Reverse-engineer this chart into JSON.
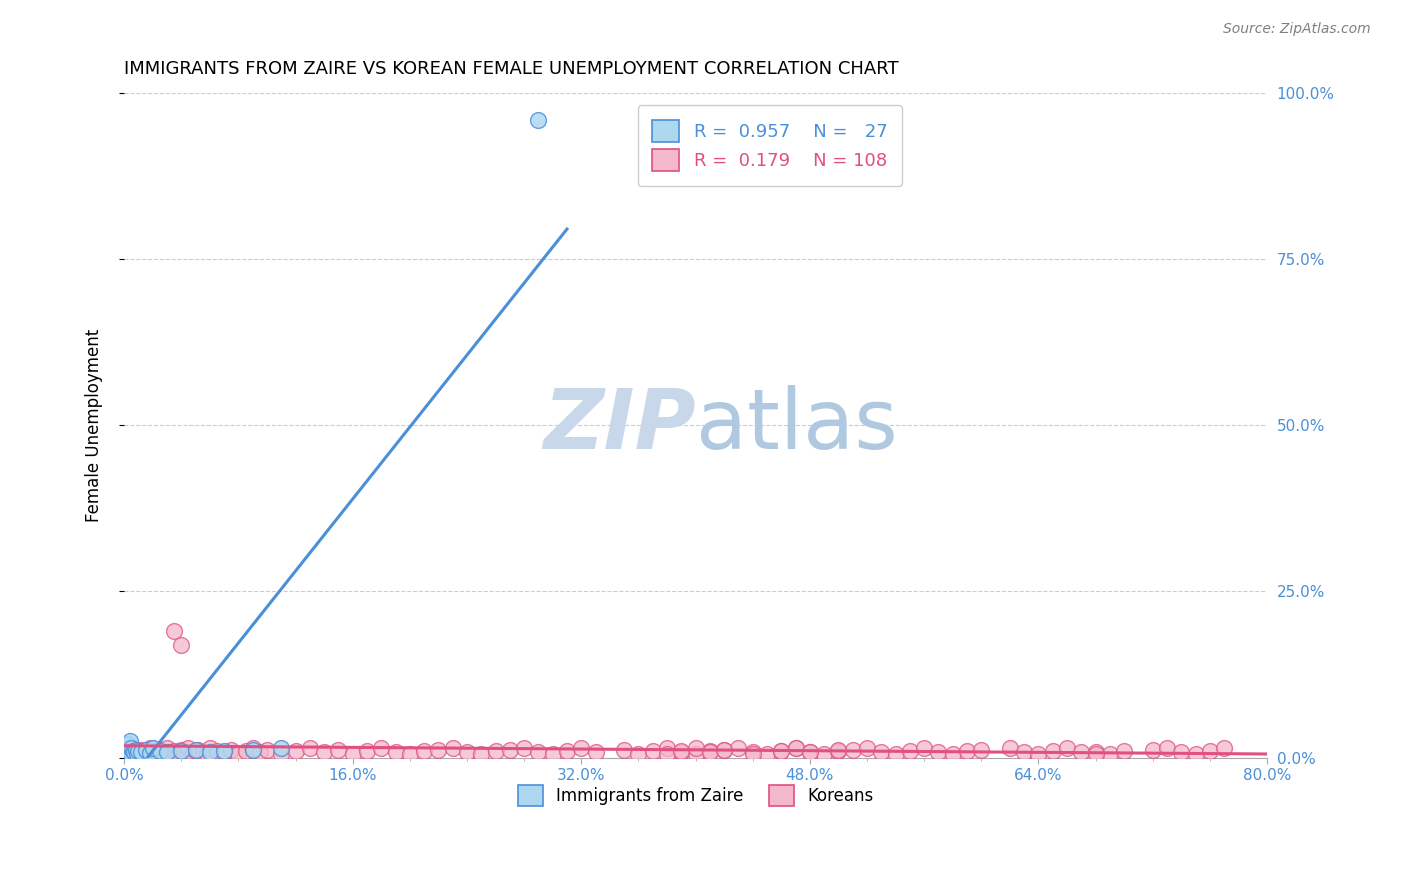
{
  "title": "IMMIGRANTS FROM ZAIRE VS KOREAN FEMALE UNEMPLOYMENT CORRELATION CHART",
  "source": "Source: ZipAtlas.com",
  "ylabel": "Female Unemployment",
  "xlim": [
    0.0,
    0.8
  ],
  "ylim": [
    0.0,
    1.0
  ],
  "legend_R1": "0.957",
  "legend_N1": "27",
  "legend_R2": "0.179",
  "legend_N2": "108",
  "zaire_fill_color": "#aed8f0",
  "zaire_edge_color": "#4a90d9",
  "korean_fill_color": "#f4b8cc",
  "korean_edge_color": "#e05080",
  "zaire_line_color": "#4a90d9",
  "korean_line_color": "#e05080",
  "right_tick_color": "#4a90d9",
  "background_color": "#ffffff",
  "grid_color": "#cccccc",
  "zaire_points_x": [
    0.001,
    0.002,
    0.002,
    0.003,
    0.003,
    0.004,
    0.004,
    0.005,
    0.005,
    0.006,
    0.007,
    0.008,
    0.009,
    0.01,
    0.012,
    0.015,
    0.018,
    0.02,
    0.025,
    0.03,
    0.04,
    0.05,
    0.06,
    0.07,
    0.09,
    0.11,
    0.29
  ],
  "zaire_points_y": [
    0.01,
    0.005,
    0.015,
    0.008,
    0.02,
    0.01,
    0.025,
    0.005,
    0.015,
    0.01,
    0.008,
    0.012,
    0.006,
    0.01,
    0.008,
    0.012,
    0.007,
    0.015,
    0.01,
    0.008,
    0.01,
    0.012,
    0.008,
    0.01,
    0.012,
    0.015,
    0.96
  ],
  "korean_points_x": [
    0.005,
    0.008,
    0.01,
    0.012,
    0.015,
    0.018,
    0.02,
    0.022,
    0.025,
    0.028,
    0.03,
    0.032,
    0.035,
    0.038,
    0.04,
    0.042,
    0.045,
    0.048,
    0.05,
    0.052,
    0.055,
    0.058,
    0.06,
    0.065,
    0.07,
    0.075,
    0.08,
    0.085,
    0.09,
    0.095,
    0.1,
    0.11,
    0.12,
    0.13,
    0.14,
    0.15,
    0.16,
    0.17,
    0.18,
    0.19,
    0.2,
    0.21,
    0.22,
    0.23,
    0.24,
    0.25,
    0.26,
    0.27,
    0.28,
    0.29,
    0.3,
    0.31,
    0.32,
    0.33,
    0.35,
    0.36,
    0.37,
    0.38,
    0.39,
    0.4,
    0.41,
    0.42,
    0.43,
    0.44,
    0.45,
    0.46,
    0.47,
    0.48,
    0.49,
    0.5,
    0.51,
    0.52,
    0.53,
    0.54,
    0.55,
    0.56,
    0.57,
    0.58,
    0.59,
    0.6,
    0.62,
    0.63,
    0.64,
    0.65,
    0.66,
    0.68,
    0.69,
    0.7,
    0.72,
    0.73,
    0.74,
    0.75,
    0.76,
    0.77,
    0.67,
    0.68,
    0.035,
    0.04,
    0.38,
    0.39,
    0.4,
    0.41,
    0.42,
    0.44,
    0.46,
    0.47,
    0.48,
    0.5
  ],
  "korean_points_y": [
    0.005,
    0.01,
    0.008,
    0.012,
    0.006,
    0.015,
    0.008,
    0.01,
    0.012,
    0.005,
    0.015,
    0.008,
    0.01,
    0.006,
    0.012,
    0.008,
    0.015,
    0.005,
    0.01,
    0.012,
    0.008,
    0.006,
    0.015,
    0.01,
    0.008,
    0.012,
    0.005,
    0.01,
    0.015,
    0.008,
    0.012,
    0.006,
    0.01,
    0.015,
    0.008,
    0.012,
    0.005,
    0.01,
    0.015,
    0.008,
    0.006,
    0.01,
    0.012,
    0.015,
    0.008,
    0.005,
    0.01,
    0.012,
    0.015,
    0.008,
    0.006,
    0.01,
    0.015,
    0.008,
    0.012,
    0.005,
    0.01,
    0.015,
    0.008,
    0.006,
    0.01,
    0.012,
    0.015,
    0.008,
    0.005,
    0.01,
    0.015,
    0.008,
    0.006,
    0.01,
    0.012,
    0.015,
    0.008,
    0.005,
    0.01,
    0.015,
    0.008,
    0.006,
    0.01,
    0.012,
    0.015,
    0.008,
    0.005,
    0.01,
    0.015,
    0.008,
    0.006,
    0.01,
    0.012,
    0.015,
    0.008,
    0.005,
    0.01,
    0.015,
    0.008,
    0.006,
    0.19,
    0.17,
    0.005,
    0.01,
    0.015,
    0.008,
    0.012,
    0.006,
    0.01,
    0.015,
    0.008,
    0.012
  ]
}
